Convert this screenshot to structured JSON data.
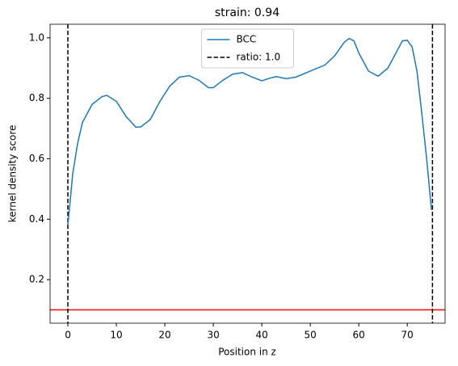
{
  "chart_data": {
    "type": "line",
    "title": "strain: 0.94",
    "xlabel": "Position in z",
    "ylabel": "kernel density score",
    "x": [
      0,
      1,
      2,
      3,
      5,
      7,
      8,
      10,
      12,
      14,
      15,
      17,
      19,
      21,
      23,
      25,
      27,
      29,
      30,
      32,
      34,
      36,
      38,
      40,
      42,
      43,
      45,
      47,
      50,
      53,
      55,
      57,
      58,
      59,
      60,
      62,
      64,
      66,
      68,
      69,
      70,
      71,
      72,
      73,
      74,
      75
    ],
    "series": [
      {
        "name": "BCC",
        "color": "#1f77b4",
        "values": [
          0.38,
          0.55,
          0.65,
          0.72,
          0.78,
          0.805,
          0.81,
          0.79,
          0.74,
          0.705,
          0.705,
          0.73,
          0.79,
          0.84,
          0.87,
          0.875,
          0.86,
          0.835,
          0.835,
          0.86,
          0.88,
          0.885,
          0.87,
          0.858,
          0.868,
          0.872,
          0.865,
          0.87,
          0.89,
          0.91,
          0.94,
          0.985,
          0.998,
          0.99,
          0.95,
          0.89,
          0.873,
          0.9,
          0.96,
          0.99,
          0.992,
          0.97,
          0.89,
          0.75,
          0.6,
          0.43
        ]
      }
    ],
    "vlines": {
      "name": "ratio: 1.0",
      "color": "#000000",
      "x": [
        0,
        75.2
      ]
    },
    "hline": {
      "color": "#ff0000",
      "y": 0.1
    },
    "xlim": [
      -3.67,
      77.8
    ],
    "ylim": [
      0.056,
      1.045
    ],
    "xticks": [
      0,
      10,
      20,
      30,
      40,
      50,
      60,
      70
    ],
    "yticks": [
      0.2,
      0.4,
      0.6,
      0.8,
      {
        "value": 1,
        "label": "1.0"
      }
    ],
    "legend": "upper center"
  }
}
